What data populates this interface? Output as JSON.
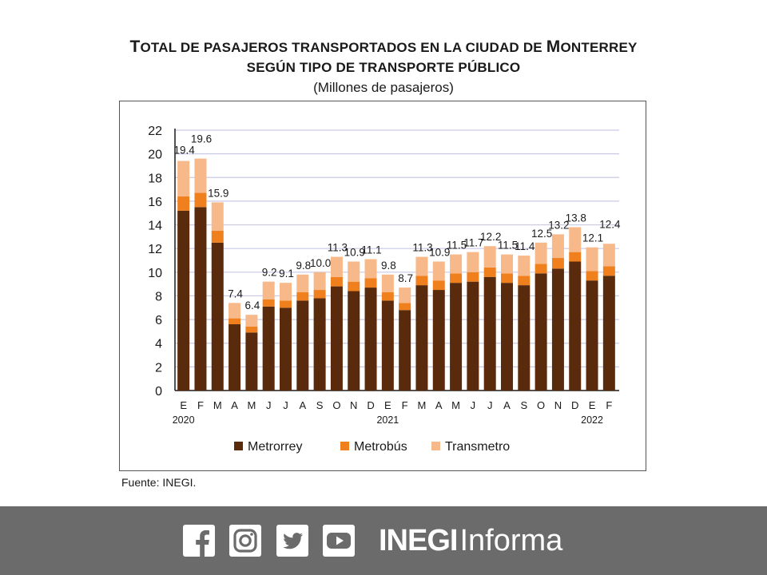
{
  "title": {
    "line1": "Total de pasajeros transportados en la ciudad de Monterrey",
    "line2": "según tipo de transporte público",
    "subtitle": "(Millones de pasajeros)"
  },
  "source": "Fuente: INEGI.",
  "footer": {
    "icons": [
      "facebook-icon",
      "instagram-icon",
      "twitter-icon",
      "youtube-icon"
    ],
    "brand_bold": "INEGI",
    "brand_light": "Informa",
    "background": "#6b6b6b"
  },
  "chart_data": {
    "type": "bar",
    "stacked": true,
    "categories": [
      "E",
      "F",
      "M",
      "A",
      "M",
      "J",
      "J",
      "A",
      "S",
      "O",
      "N",
      "D",
      "E",
      "F",
      "M",
      "A",
      "M",
      "J",
      "J",
      "A",
      "S",
      "O",
      "N",
      "D",
      "E",
      "F"
    ],
    "year_labels": [
      {
        "index": 0,
        "label": "2020"
      },
      {
        "index": 12,
        "label": "2021"
      },
      {
        "index": 24,
        "label": "2022"
      }
    ],
    "series": [
      {
        "name": "Metrorrey",
        "color": "#5a2a0c",
        "values": [
          15.2,
          15.5,
          12.5,
          5.6,
          4.9,
          7.1,
          7.0,
          7.6,
          7.8,
          8.8,
          8.4,
          8.7,
          7.6,
          6.8,
          8.9,
          8.5,
          9.1,
          9.2,
          9.6,
          9.1,
          8.9,
          9.9,
          10.3,
          10.9,
          9.3,
          9.7
        ]
      },
      {
        "name": "Metrobús",
        "color": "#f0801e",
        "values": [
          1.2,
          1.2,
          1.0,
          0.5,
          0.5,
          0.6,
          0.6,
          0.7,
          0.7,
          0.8,
          0.8,
          0.8,
          0.7,
          0.6,
          0.8,
          0.8,
          0.8,
          0.8,
          0.8,
          0.8,
          0.8,
          0.8,
          0.9,
          0.8,
          0.8,
          0.8
        ]
      },
      {
        "name": "Transmetro",
        "color": "#f7b98a",
        "values": [
          3.0,
          2.9,
          2.4,
          1.3,
          1.0,
          1.5,
          1.5,
          1.5,
          1.5,
          1.7,
          1.7,
          1.6,
          1.5,
          1.3,
          1.6,
          1.6,
          1.6,
          1.7,
          1.8,
          1.6,
          1.7,
          1.8,
          2.0,
          2.1,
          2.0,
          1.9
        ]
      }
    ],
    "totals": [
      19.4,
      19.6,
      15.9,
      7.4,
      6.4,
      9.2,
      9.1,
      9.8,
      10.0,
      11.3,
      10.9,
      11.1,
      9.8,
      8.7,
      11.3,
      10.9,
      11.5,
      11.7,
      12.2,
      11.5,
      11.4,
      12.5,
      13.2,
      13.8,
      12.1,
      12.4
    ],
    "ylim": [
      0,
      22
    ],
    "yticks": [
      0,
      2,
      4,
      6,
      8,
      10,
      12,
      14,
      16,
      18,
      20,
      22
    ],
    "grid": true,
    "legend_position": "bottom"
  }
}
